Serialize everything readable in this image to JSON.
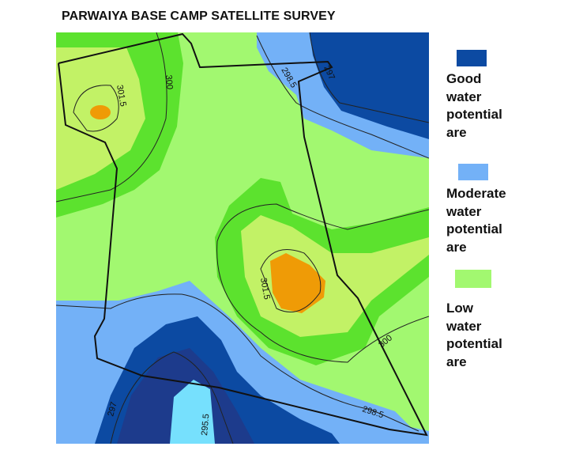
{
  "title": "PARWAIYA BASE CAMP SATELLITE SURVEY",
  "map": {
    "zone_colors": {
      "low_light_green": "#a2f870",
      "green": "#5ce22e",
      "yellow_green": "#c2f266",
      "orange": "#ef9b06",
      "light_blue": "#73b1f7",
      "dark_blue": "#0c4aa2",
      "navy": "#1d3b8c",
      "cyan": "#76e0fd"
    },
    "contour_labels": [
      "301.5",
      "300",
      "298.5",
      "297",
      "301.5",
      "300",
      "298.5",
      "297",
      "295.5"
    ]
  },
  "legend": [
    {
      "label_lines": [
        "Good",
        "water",
        "potential",
        "are"
      ],
      "color": "#0c4aa2"
    },
    {
      "label_lines": [
        "Moderate",
        "water",
        "potential",
        "are"
      ],
      "color": "#73b1f7"
    },
    {
      "label_lines": [
        "Low",
        "water",
        "potential",
        "are"
      ],
      "color": "#a2f870"
    }
  ]
}
